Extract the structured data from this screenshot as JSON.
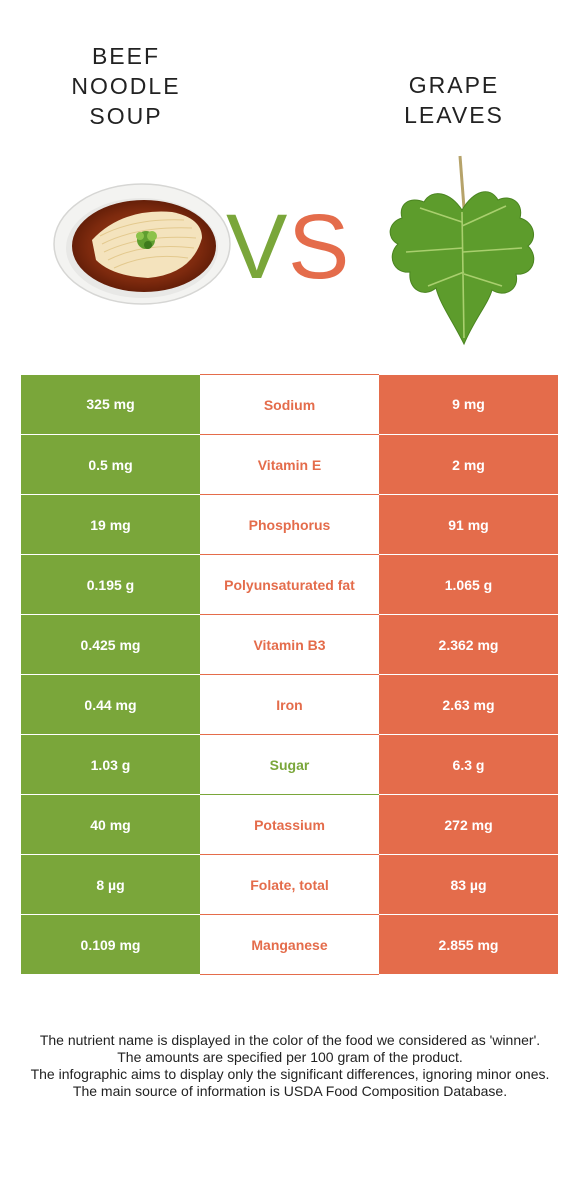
{
  "foods": {
    "left": {
      "title_lines": [
        "BEEF",
        "NOODLE",
        "SOUP"
      ],
      "color": "#7aa63a"
    },
    "right": {
      "title_lines": [
        "GRAPE",
        "LEAVES"
      ],
      "color": "#e46c4b"
    }
  },
  "vs": {
    "v": "V",
    "s": "S",
    "v_color": "#7aa63a",
    "s_color": "#e46c4b"
  },
  "rows": [
    {
      "left": "325 mg",
      "nutrient": "Sodium",
      "right": "9 mg",
      "winner": "right"
    },
    {
      "left": "0.5 mg",
      "nutrient": "Vitamin E",
      "right": "2 mg",
      "winner": "right"
    },
    {
      "left": "19 mg",
      "nutrient": "Phosphorus",
      "right": "91 mg",
      "winner": "right"
    },
    {
      "left": "0.195 g",
      "nutrient": "Polyunsaturated fat",
      "right": "1.065 g",
      "winner": "right"
    },
    {
      "left": "0.425 mg",
      "nutrient": "Vitamin B3",
      "right": "2.362 mg",
      "winner": "right"
    },
    {
      "left": "0.44 mg",
      "nutrient": "Iron",
      "right": "2.63 mg",
      "winner": "right"
    },
    {
      "left": "1.03 g",
      "nutrient": "Sugar",
      "right": "6.3 g",
      "winner": "left"
    },
    {
      "left": "40 mg",
      "nutrient": "Potassium",
      "right": "272 mg",
      "winner": "right"
    },
    {
      "left": "8 µg",
      "nutrient": "Folate, total",
      "right": "83 µg",
      "winner": "right"
    },
    {
      "left": "0.109 mg",
      "nutrient": "Manganese",
      "right": "2.855 mg",
      "winner": "right"
    }
  ],
  "notes": [
    "The nutrient name is displayed in the color of the food we considered as 'winner'.",
    "The amounts are specified per 100 gram of the product.",
    "The infographic aims to display only the significant differences, ignoring minor ones.",
    "The main source of information is USDA Food Composition Database."
  ]
}
